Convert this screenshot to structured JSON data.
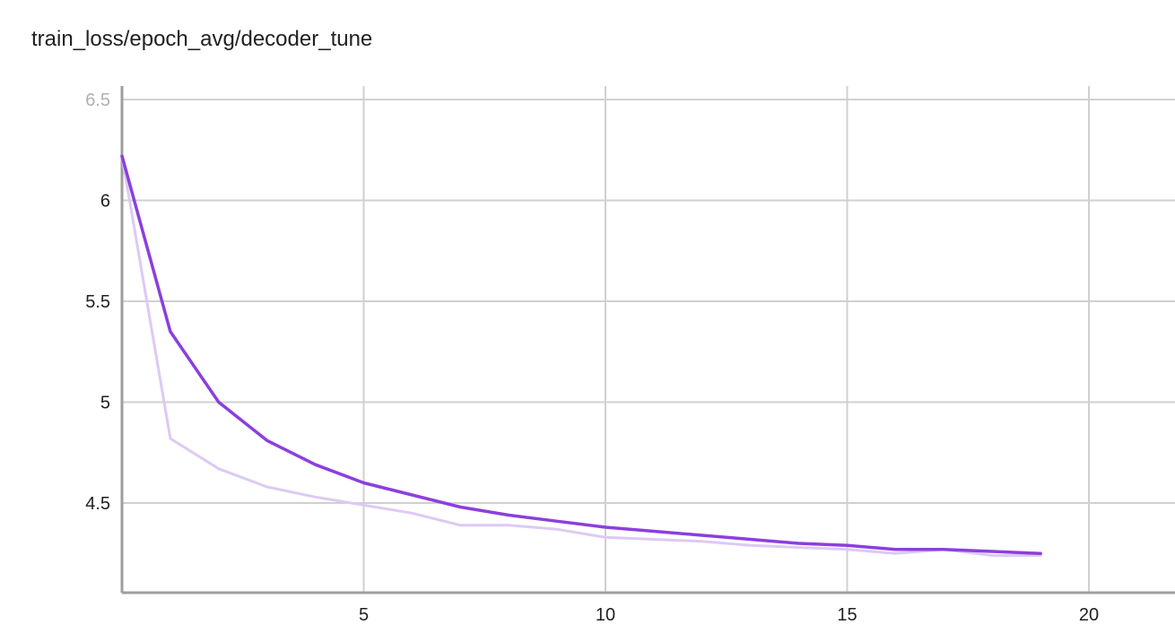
{
  "chart_data": {
    "type": "line",
    "title": "train_loss/epoch_avg/decoder_tune",
    "xlabel": "",
    "ylabel": "",
    "xlim": [
      0,
      22
    ],
    "ylim": [
      4.0,
      6.5
    ],
    "x_ticks": [
      5,
      10,
      15,
      20
    ],
    "y_ticks": [
      4.5,
      5,
      5.5,
      6,
      6.5
    ],
    "x_tick_labels": [
      "5",
      "10",
      "15",
      "20"
    ],
    "y_tick_labels": [
      "4.5",
      "5",
      "5.5",
      "6",
      "6.5"
    ],
    "grid": true,
    "colors": {
      "smoothed": "#8b3fdc",
      "raw": "#ddc9f5",
      "grid": "#d0d0d0",
      "axis": "#9e9e9e"
    },
    "series": [
      {
        "role": "raw",
        "x": [
          0,
          1,
          2,
          3,
          4,
          5,
          6,
          7,
          8,
          9,
          10,
          11,
          12,
          13,
          14,
          15,
          16,
          17,
          18,
          19
        ],
        "y": [
          6.22,
          4.82,
          4.67,
          4.58,
          4.53,
          4.49,
          4.45,
          4.39,
          4.39,
          4.37,
          4.33,
          4.32,
          4.31,
          4.29,
          4.28,
          4.27,
          4.25,
          4.27,
          4.24,
          4.24
        ]
      },
      {
        "role": "smoothed",
        "x": [
          0,
          1,
          2,
          3,
          4,
          5,
          6,
          7,
          8,
          9,
          10,
          11,
          12,
          13,
          14,
          15,
          16,
          17,
          18,
          19
        ],
        "y": [
          6.22,
          5.35,
          5.0,
          4.81,
          4.69,
          4.6,
          4.54,
          4.48,
          4.44,
          4.41,
          4.38,
          4.36,
          4.34,
          4.32,
          4.3,
          4.29,
          4.27,
          4.27,
          4.26,
          4.25
        ]
      }
    ]
  }
}
